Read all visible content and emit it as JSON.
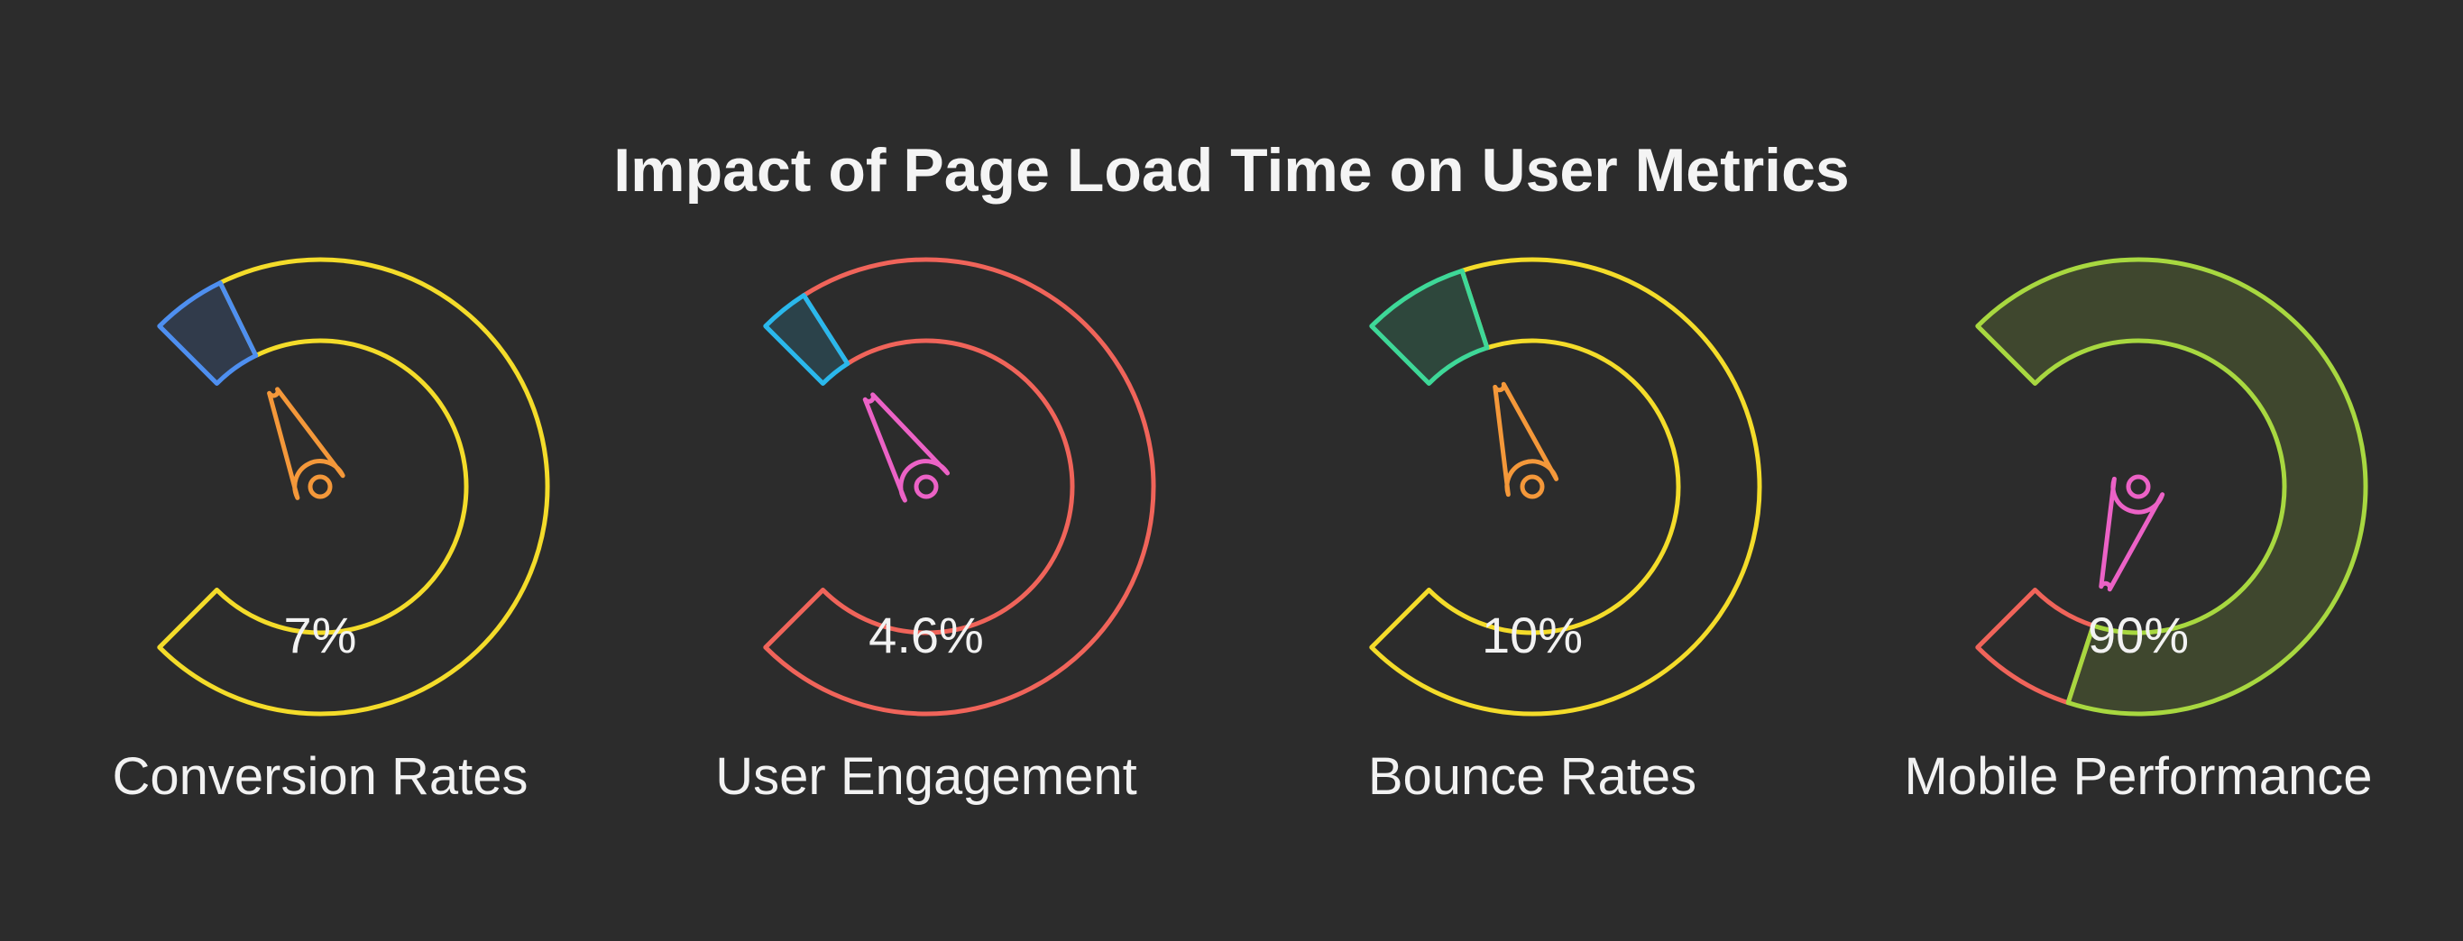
{
  "title": "Impact of Page Load Time on User Metrics",
  "chart_data": {
    "type": "gauge",
    "title": "Impact of Page Load Time on User Metrics",
    "range": [
      0,
      100
    ],
    "gauges": [
      {
        "label": "Conversion Rates",
        "value_label": "7%",
        "value": 7,
        "track_color": "#f4dc2a",
        "fill_color": "#4e8ff0",
        "needle_color": "#f4983a"
      },
      {
        "label": "User Engagement",
        "value_label": "4.6%",
        "value": 4.6,
        "track_color": "#f0645a",
        "fill_color": "#2ab8ec",
        "needle_color": "#ec62c6"
      },
      {
        "label": "Bounce Rates",
        "value_label": "10%",
        "value": 10,
        "track_color": "#f4dc2a",
        "fill_color": "#3ed898",
        "needle_color": "#f4983a"
      },
      {
        "label": "Mobile Performance",
        "value_label": "90%",
        "value": 90,
        "track_color": "#f0645a",
        "fill_color": "#a8d840",
        "needle_color": "#ec62c6"
      }
    ]
  }
}
